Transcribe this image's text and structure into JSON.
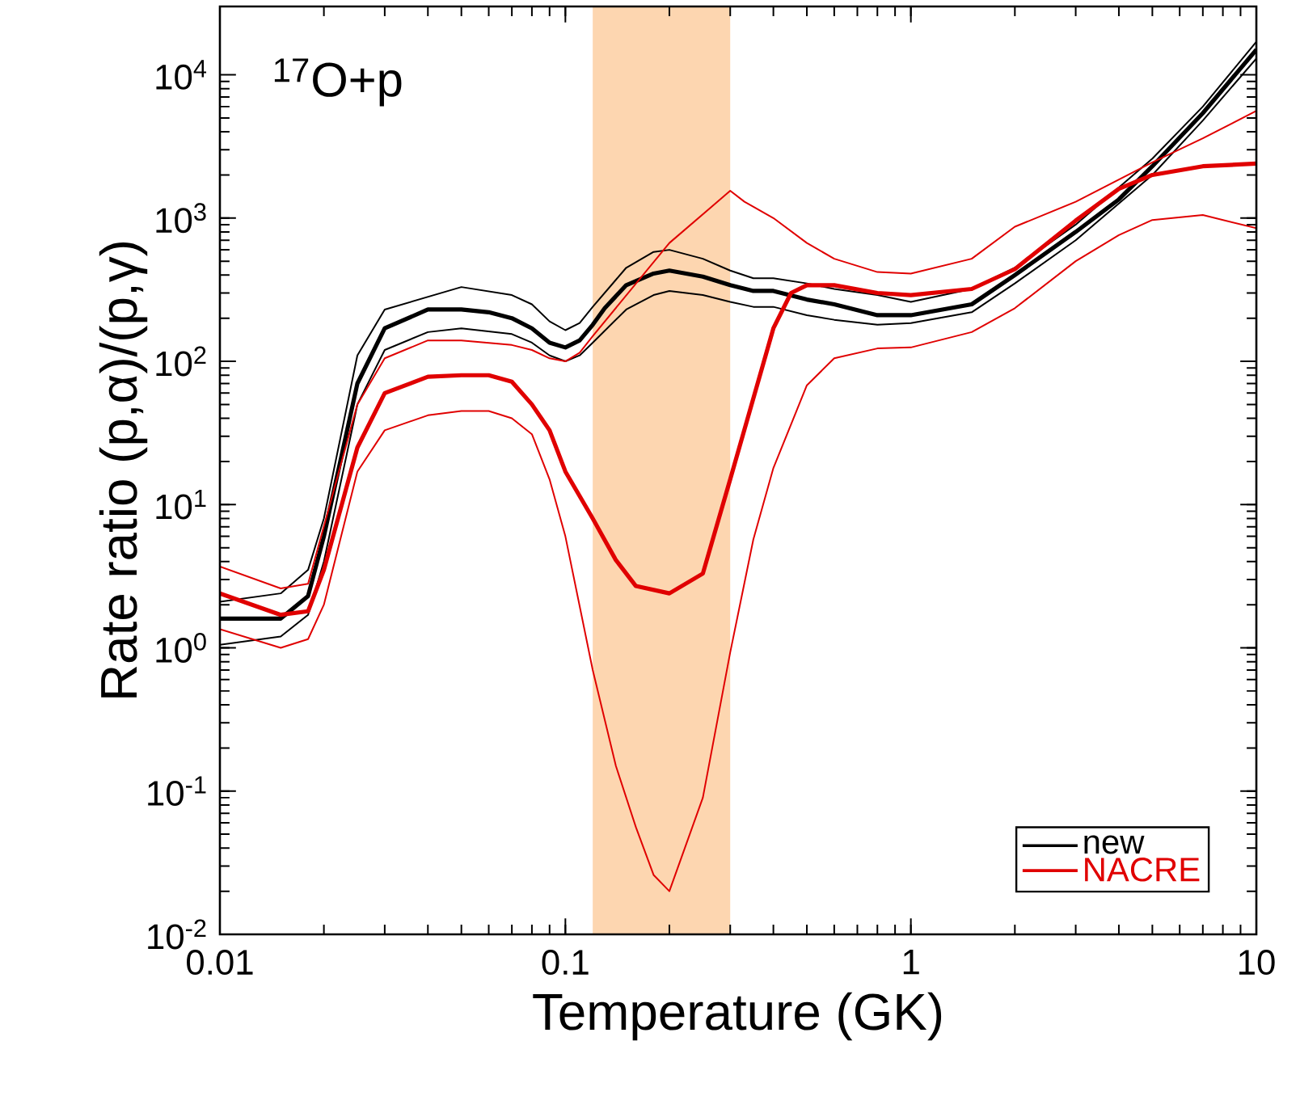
{
  "chart_data": {
    "type": "line",
    "xlabel": "Temperature (GK)",
    "ylabel": "Rate ratio (p,α)/(p,γ)",
    "annotations": [
      "$^{17}$O+p"
    ],
    "log": "xy",
    "legend": "bottom right",
    "xlim": [
      0.01,
      10
    ],
    "ylim": [
      0.01,
      30000
    ],
    "xticks": [
      0.01,
      0.1,
      1,
      10
    ],
    "yticks": [
      {
        "value": 0.01,
        "label": "10$^{-2}$"
      },
      {
        "value": 0.1,
        "label": "10$^{-1}$"
      },
      {
        "value": 1,
        "label": "10$^{0}$"
      },
      {
        "value": 10,
        "label": "10$^{1}$"
      },
      {
        "value": 100,
        "label": "10$^{2}$"
      },
      {
        "value": 1000,
        "label": "10$^{3}$"
      },
      {
        "value": 10000,
        "label": "10$^{4}$"
      }
    ],
    "bands": [
      {
        "axis": "x",
        "from": 0.12,
        "to": 0.3,
        "color": "#fdd6b0"
      }
    ],
    "series": [
      {
        "name": "new",
        "color": "#000000",
        "x": [
          0.01,
          0.015,
          0.018,
          0.02,
          0.025,
          0.03,
          0.04,
          0.05,
          0.06,
          0.07,
          0.08,
          0.09,
          0.1,
          0.11,
          0.12,
          0.13,
          0.15,
          0.18,
          0.2,
          0.25,
          0.3,
          0.35,
          0.4,
          0.5,
          0.6,
          0.8,
          1,
          1.5,
          2,
          3,
          4,
          5,
          7,
          10
        ],
        "values": [
          1.6,
          1.6,
          2.3,
          6,
          70,
          170,
          230,
          230,
          220,
          200,
          170,
          135,
          125,
          140,
          180,
          235,
          340,
          410,
          430,
          390,
          340,
          310,
          310,
          270,
          250,
          210,
          210,
          250,
          400,
          800,
          1350,
          2300,
          5400,
          15000
        ]
      },
      {
        "color": "#000000",
        "x": [
          0.01,
          0.015,
          0.018,
          0.02,
          0.025,
          0.03,
          0.05,
          0.07,
          0.08,
          0.09,
          0.1,
          0.11,
          0.12,
          0.15,
          0.18,
          0.2,
          0.25,
          0.3,
          0.35,
          0.4,
          0.5,
          0.6,
          0.8,
          1,
          1.5,
          2,
          3,
          5,
          7,
          10
        ],
        "values": [
          2.1,
          2.4,
          3.5,
          8,
          110,
          230,
          330,
          290,
          250,
          190,
          165,
          185,
          240,
          450,
          580,
          600,
          520,
          430,
          380,
          380,
          350,
          320,
          290,
          260,
          320,
          450,
          900,
          2600,
          6000,
          17000
        ]
      },
      {
        "color": "#000000",
        "x": [
          0.01,
          0.015,
          0.018,
          0.02,
          0.025,
          0.03,
          0.04,
          0.05,
          0.07,
          0.08,
          0.09,
          0.1,
          0.11,
          0.12,
          0.15,
          0.18,
          0.2,
          0.25,
          0.3,
          0.35,
          0.4,
          0.5,
          0.6,
          0.8,
          1,
          1.5,
          2,
          3,
          5,
          7,
          10
        ],
        "values": [
          1.05,
          1.2,
          1.7,
          4,
          50,
          120,
          160,
          170,
          155,
          135,
          110,
          100,
          110,
          135,
          230,
          290,
          310,
          290,
          260,
          240,
          240,
          210,
          195,
          180,
          185,
          220,
          350,
          700,
          2000,
          4800,
          13000
        ]
      },
      {
        "name": "NACRE",
        "color": "#e00000",
        "x": [
          0.01,
          0.015,
          0.018,
          0.02,
          0.025,
          0.03,
          0.04,
          0.05,
          0.06,
          0.07,
          0.08,
          0.09,
          0.1,
          0.12,
          0.14,
          0.16,
          0.2,
          0.25,
          0.3,
          0.4,
          0.45,
          0.5,
          0.6,
          0.8,
          1,
          1.5,
          2,
          3,
          4,
          5,
          7,
          10
        ],
        "values": [
          2.4,
          1.7,
          1.8,
          3.5,
          25,
          60,
          78,
          80,
          80,
          72,
          50,
          33,
          17,
          8,
          4.1,
          2.7,
          2.4,
          3.3,
          15,
          170,
          300,
          340,
          340,
          300,
          290,
          320,
          440,
          960,
          1600,
          2000,
          2300,
          2400
        ]
      },
      {
        "color": "#e00000",
        "x": [
          0.01,
          0.015,
          0.018,
          0.025,
          0.03,
          0.04,
          0.05,
          0.07,
          0.08,
          0.09,
          0.1,
          0.11,
          0.12,
          0.2,
          0.3,
          0.33,
          0.4,
          0.5,
          0.6,
          0.8,
          1,
          1.5,
          2,
          3,
          5,
          7,
          10
        ],
        "values": [
          3.7,
          2.6,
          2.8,
          50,
          105,
          140,
          140,
          130,
          120,
          105,
          100,
          115,
          150,
          670,
          1550,
          1300,
          1000,
          670,
          520,
          420,
          410,
          520,
          870,
          1300,
          2450,
          3600,
          5600
        ]
      },
      {
        "color": "#e00000",
        "x": [
          0.01,
          0.015,
          0.018,
          0.02,
          0.025,
          0.03,
          0.04,
          0.05,
          0.06,
          0.07,
          0.08,
          0.09,
          0.1,
          0.12,
          0.14,
          0.16,
          0.18,
          0.2,
          0.25,
          0.3,
          0.35,
          0.4,
          0.5,
          0.6,
          0.8,
          1,
          1.5,
          2,
          3,
          4,
          5,
          7,
          10
        ],
        "values": [
          1.35,
          1.0,
          1.15,
          2,
          17,
          33,
          42,
          45,
          45,
          40,
          31,
          15,
          6,
          0.7,
          0.15,
          0.056,
          0.026,
          0.02,
          0.09,
          0.93,
          5.7,
          18,
          68,
          105,
          123,
          125,
          160,
          235,
          500,
          760,
          970,
          1050,
          850
        ]
      }
    ]
  }
}
